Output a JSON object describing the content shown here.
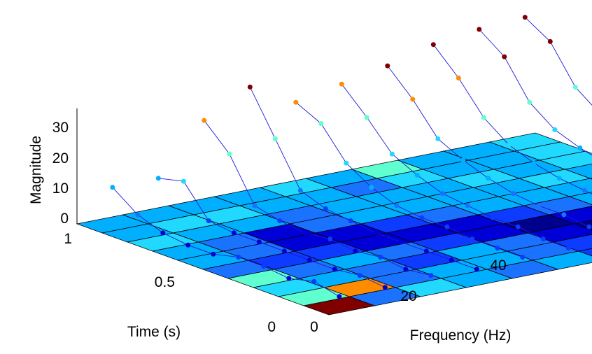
{
  "chart_data": {
    "type": "surface-stem3d",
    "xlabel": "Frequency (Hz)",
    "ylabel": "Time (s)",
    "zlabel": "Magnitude",
    "x_ticks": [
      "0",
      "20",
      "40"
    ],
    "y_ticks": [
      "0",
      "0.5",
      "1"
    ],
    "z_ticks": [
      "0",
      "10",
      "20",
      "30"
    ],
    "zlim": [
      0,
      35
    ],
    "surface_colormap": "jet",
    "surface_palette": [
      "#00008f",
      "#0000d6",
      "#0d3bff",
      "#1a73ff",
      "#00b0ff",
      "#21d8ff",
      "#5fffcf",
      "#ff8c00",
      "#800000"
    ],
    "surface_grid": [
      [
        4,
        4,
        4,
        4,
        5,
        4,
        6,
        4,
        4,
        5
      ],
      [
        4,
        5,
        5,
        4,
        4,
        3,
        5,
        4,
        4,
        5
      ],
      [
        5,
        4,
        4,
        3,
        4,
        4,
        4,
        5,
        4,
        5
      ],
      [
        4,
        3,
        1,
        3,
        4,
        4,
        4,
        4,
        5,
        4
      ],
      [
        4,
        3,
        1,
        1,
        2,
        3,
        4,
        4,
        4,
        4
      ],
      [
        3,
        2,
        2,
        1,
        1,
        1,
        2,
        3,
        4,
        4
      ],
      [
        6,
        3,
        4,
        3,
        2,
        1,
        0,
        1,
        4,
        4
      ],
      [
        5,
        4,
        3,
        2,
        4,
        3,
        1,
        0,
        3,
        4
      ],
      [
        6,
        7,
        3,
        4,
        4,
        3,
        2,
        1,
        3,
        4
      ],
      [
        8,
        3,
        5,
        4,
        3,
        4,
        2,
        1,
        4,
        4
      ]
    ],
    "stem_series": [
      {
        "freq": 5,
        "values": [
          3,
          5,
          3,
          4,
          4,
          2,
          2,
          3,
          6,
          12
        ]
      },
      {
        "freq": 10,
        "values": [
          3,
          4,
          3,
          3,
          3,
          3,
          3,
          4,
          14,
          12
        ]
      },
      {
        "freq": 15,
        "values": [
          4,
          3,
          4,
          3,
          4,
          3,
          4,
          6,
          20,
          28
        ]
      },
      {
        "freq": 20,
        "values": [
          3,
          3,
          3,
          3,
          3,
          4,
          5,
          8,
          22,
          36
        ]
      },
      {
        "freq": 25,
        "values": [
          4,
          4,
          4,
          5,
          5,
          6,
          9,
          14,
          24,
          28
        ]
      },
      {
        "freq": 30,
        "values": [
          4,
          4,
          5,
          5,
          6,
          7,
          10,
          14,
          23,
          31
        ]
      },
      {
        "freq": 35,
        "values": [
          5,
          5,
          6,
          6,
          7,
          9,
          12,
          16,
          26,
          34
        ]
      },
      {
        "freq": 40,
        "values": [
          6,
          6,
          7,
          8,
          9,
          11,
          14,
          20,
          30,
          38
        ]
      },
      {
        "freq": 45,
        "values": [
          7,
          7,
          8,
          9,
          11,
          13,
          16,
          22,
          34,
          40
        ]
      },
      {
        "freq": 50,
        "values": [
          8,
          9,
          10,
          11,
          12,
          14,
          18,
          24,
          36,
          41
        ]
      }
    ]
  }
}
